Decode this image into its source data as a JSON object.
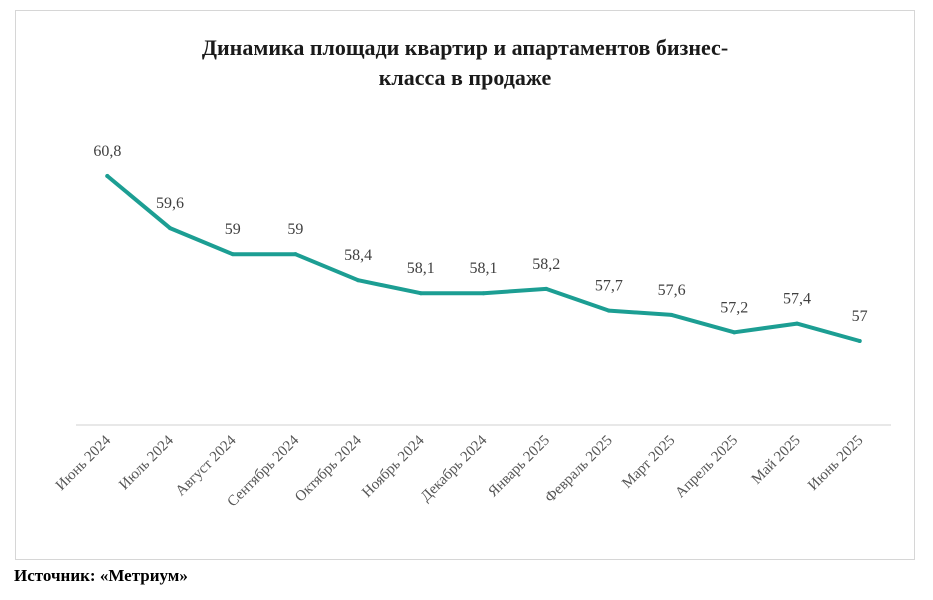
{
  "chart_data": {
    "type": "line",
    "title_lines": [
      "Динамика площади квартир и апартаментов бизнес-",
      "класса в продаже"
    ],
    "categories": [
      "Июнь 2024",
      "Июль 2024",
      "Август 2024",
      "Сентябрь 2024",
      "Октябрь 2024",
      "Ноябрь 2024",
      "Декабрь 2024",
      "Январь 2025",
      "Февраль 2025",
      "Март 2025",
      "Апрель 2025",
      "Май 2025",
      "Июнь 2025"
    ],
    "values": [
      60.8,
      59.6,
      59,
      59,
      58.4,
      58.1,
      58.1,
      58.2,
      57.7,
      57.6,
      57.2,
      57.4,
      57
    ],
    "value_labels": [
      "60,8",
      "59,6",
      "59",
      "59",
      "58,4",
      "58,1",
      "58,1",
      "58,2",
      "57,7",
      "57,6",
      "57,2",
      "57,4",
      "57"
    ],
    "ylim": [
      53,
      61.5
    ],
    "line_color": "#1c9e93",
    "grid": false,
    "legend": "none"
  },
  "source": "Источник: «Метриум»"
}
